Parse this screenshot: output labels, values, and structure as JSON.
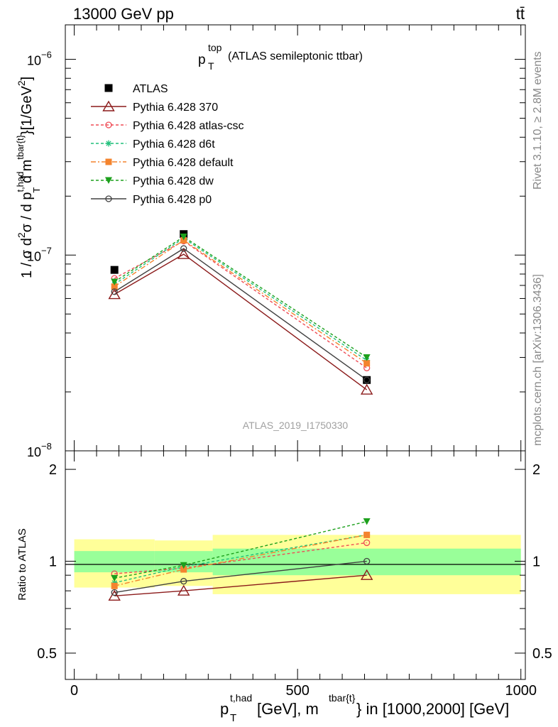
{
  "header": {
    "left": "13000 GeV pp",
    "right": "tt̄"
  },
  "side_labels": {
    "top": "Rivet 3.1.10, ≥ 2.8M events",
    "bottom": "mcplots.cern.ch [arXiv:1306.3436]"
  },
  "chart_data": {
    "type": "line",
    "title": {
      "p": "p",
      "sup": "top",
      "sub": "T",
      "rest": "(ATLAS semileptonic ttbar)"
    },
    "watermark": "ATLAS_2019_I1750330",
    "x": [
      90,
      245,
      655
    ],
    "xlim": [
      -20,
      1010
    ],
    "x_ticks": [
      {
        "value": 0,
        "label": "0"
      },
      {
        "value": 500,
        "label": "500"
      },
      {
        "value": 1000,
        "label": "1000"
      }
    ],
    "xlabel": {
      "p": "p",
      "sup1": "t,had",
      "sub": "T",
      "unit": " [GeV], m",
      "sup2": "tbar{t}",
      "rest": "} in [1000,2000] [GeV]"
    },
    "ylabel_main": {
      "a": "1 / σ d",
      "sup1": "2",
      "b": "σ / d p",
      "sup2": "t,had",
      "sub": "T",
      "c": " d m",
      "sup3": "tbar{t}",
      "d": "}[1/GeV",
      "sup4": "2",
      "e": "]"
    },
    "ylim_main": [
      1e-08,
      1.5e-06
    ],
    "y_ticks_main": [
      {
        "value": 1e-08,
        "base": "10",
        "exp": "−8"
      },
      {
        "value": 1e-07,
        "base": "10",
        "exp": "−7"
      },
      {
        "value": 1e-06,
        "base": "10",
        "exp": "−6"
      }
    ],
    "ylabel_ratio": "Ratio to ATLAS",
    "ylim_ratio": [
      0.41,
      2.3
    ],
    "y_ticks_ratio": [
      {
        "value": 0.5,
        "label": "0.5"
      },
      {
        "value": 1,
        "label": "1"
      },
      {
        "value": 2,
        "label": "2"
      }
    ],
    "bins": [
      {
        "lo": 0,
        "hi": 180,
        "stat": 0.08,
        "total": 0.18
      },
      {
        "lo": 180,
        "hi": 310,
        "stat": 0.08,
        "total": 0.17
      },
      {
        "lo": 310,
        "hi": 1000,
        "stat": 0.1,
        "total": 0.22
      }
    ],
    "series": [
      {
        "name": "ATLAS",
        "values": [
          8.4e-08,
          1.28e-07,
          2.3e-08
        ],
        "ratio": [
          1,
          1,
          1
        ],
        "color": "#000000",
        "marker": "square-filled",
        "dash": "none"
      },
      {
        "name": "Pythia 6.428 370",
        "values": [
          6.3e-08,
          1.01e-07,
          2.05e-08
        ],
        "ratio": [
          0.77,
          0.8,
          0.9
        ],
        "color": "#8b1a1a",
        "marker": "triangle-open",
        "dash": "solid"
      },
      {
        "name": "Pythia 6.428 atlas-csc",
        "values": [
          7.6e-08,
          1.18e-07,
          2.65e-08
        ],
        "ratio": [
          0.91,
          0.95,
          1.15
        ],
        "color": "#ef4b55",
        "marker": "circle-open",
        "dash": "4,3"
      },
      {
        "name": "Pythia 6.428 d6t",
        "values": [
          7.1e-08,
          1.22e-07,
          2.9e-08
        ],
        "ratio": [
          0.85,
          0.96,
          1.22
        ],
        "color": "#1fbf7a",
        "marker": "star",
        "dash": "4,3"
      },
      {
        "name": "Pythia 6.428 default",
        "values": [
          6.9e-08,
          1.19e-07,
          2.8e-08
        ],
        "ratio": [
          0.83,
          0.94,
          1.22
        ],
        "color": "#f4842e",
        "marker": "square-filled-small",
        "dash": "7,3,2,3"
      },
      {
        "name": "Pythia 6.428 dw",
        "values": [
          7.3e-08,
          1.24e-07,
          3e-08
        ],
        "ratio": [
          0.88,
          0.97,
          1.35
        ],
        "color": "#1ca01c",
        "marker": "triangle-down-filled",
        "dash": "4,3"
      },
      {
        "name": "Pythia 6.428 p0",
        "values": [
          6.5e-08,
          1.08e-07,
          2.3e-08
        ],
        "ratio": [
          0.79,
          0.86,
          1.0
        ],
        "color": "#404040",
        "marker": "circle-open",
        "dash": "solid"
      }
    ],
    "colors": {
      "stat_band": "#99ff99",
      "total_band": "#ffff99"
    }
  }
}
